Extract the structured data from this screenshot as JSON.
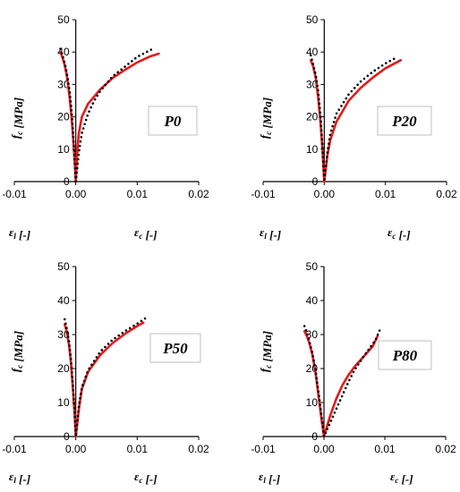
{
  "figure": {
    "colors": {
      "model_line": "#e31a1c",
      "experiment_points": "#000000",
      "axis": "#000000",
      "label_box_border": "#bfbfbf"
    }
  },
  "chart_data": [
    {
      "type": "line",
      "panel_label": "P0",
      "xlabel_left": "ε",
      "xlabel_left_sub": "l",
      "xlabel_left_unit": " [-]",
      "xlabel_right": "ε",
      "xlabel_right_sub": "c",
      "xlabel_right_unit": " [-]",
      "ylabel": "f",
      "ylabel_sub": "c",
      "ylabel_unit": " [MPa]",
      "xlim": [
        -0.01,
        0.02
      ],
      "ylim": [
        0,
        50
      ],
      "x_ticks": [
        "-0.01",
        "0.00",
        "0.01",
        "0.02"
      ],
      "y_ticks": [
        "0",
        "10",
        "20",
        "30",
        "40",
        "50"
      ],
      "series": [
        {
          "style": "solid-red",
          "points": [
            [
              -0.0025,
              40
            ],
            [
              -0.0022,
              38.5
            ],
            [
              -0.0018,
              36
            ],
            [
              -0.0014,
              32
            ],
            [
              -0.001,
              26
            ],
            [
              -0.0006,
              18
            ],
            [
              -0.0003,
              10
            ],
            [
              0,
              0
            ],
            [
              0.0002,
              8
            ],
            [
              0.0005,
              15
            ],
            [
              0.001,
              20
            ],
            [
              0.002,
              24
            ],
            [
              0.004,
              28.5
            ],
            [
              0.006,
              32
            ],
            [
              0.008,
              34.5
            ],
            [
              0.01,
              36.8
            ],
            [
              0.012,
              38.6
            ],
            [
              0.0135,
              39.5
            ]
          ]
        },
        {
          "style": "dotted-black",
          "points": [
            [
              -0.0025,
              41
            ],
            [
              -0.002,
              38
            ],
            [
              -0.0015,
              34
            ],
            [
              -0.001,
              28
            ],
            [
              -0.0006,
              20
            ],
            [
              -0.0003,
              11
            ],
            [
              0,
              0
            ],
            [
              0.0005,
              9
            ],
            [
              0.001,
              15
            ],
            [
              0.002,
              21
            ],
            [
              0.003,
              25
            ],
            [
              0.004,
              28
            ],
            [
              0.006,
              32.5
            ],
            [
              0.008,
              35.5
            ],
            [
              0.01,
              38.5
            ],
            [
              0.0125,
              41
            ]
          ]
        }
      ]
    },
    {
      "type": "line",
      "panel_label": "P20",
      "xlabel_left": "ε",
      "xlabel_left_sub": "l",
      "xlabel_left_unit": " [-]",
      "xlabel_right": "ε",
      "xlabel_right_sub": "c",
      "xlabel_right_unit": " [-]",
      "ylabel": "f",
      "ylabel_sub": "c",
      "ylabel_unit": " [MPa]",
      "xlim": [
        -0.01,
        0.02
      ],
      "ylim": [
        0,
        50
      ],
      "x_ticks": [
        "-0.01",
        "0.00",
        "0.01",
        "0.02"
      ],
      "y_ticks": [
        "0",
        "10",
        "20",
        "30",
        "40",
        "50"
      ],
      "series": [
        {
          "style": "solid-red",
          "points": [
            [
              -0.0022,
              37.5
            ],
            [
              -0.0018,
              35.5
            ],
            [
              -0.0014,
              32
            ],
            [
              -0.001,
              26
            ],
            [
              -0.0006,
              18
            ],
            [
              -0.0003,
              10
            ],
            [
              0,
              0
            ],
            [
              0.0005,
              8
            ],
            [
              0.001,
              13
            ],
            [
              0.002,
              18.5
            ],
            [
              0.004,
              25
            ],
            [
              0.006,
              29
            ],
            [
              0.008,
              32.2
            ],
            [
              0.01,
              35
            ],
            [
              0.0125,
              37.5
            ]
          ]
        },
        {
          "style": "dotted-black",
          "points": [
            [
              -0.0022,
              39
            ],
            [
              -0.0018,
              36
            ],
            [
              -0.0014,
              33
            ],
            [
              -0.001,
              28
            ],
            [
              -0.0006,
              20
            ],
            [
              -0.0003,
              11
            ],
            [
              0,
              0
            ],
            [
              0.0005,
              9
            ],
            [
              0.001,
              15
            ],
            [
              0.002,
              21
            ],
            [
              0.004,
              27
            ],
            [
              0.006,
              31
            ],
            [
              0.008,
              34
            ],
            [
              0.01,
              36.5
            ],
            [
              0.012,
              38.5
            ]
          ]
        }
      ]
    },
    {
      "type": "line",
      "panel_label": "P50",
      "xlabel_left": "ε",
      "xlabel_left_sub": "l",
      "xlabel_left_unit": " [-]",
      "xlabel_right": "ε",
      "xlabel_right_sub": "c",
      "xlabel_right_unit": " [-]",
      "ylabel": "f",
      "ylabel_sub": "c",
      "ylabel_unit": " [MPa]",
      "xlim": [
        -0.01,
        0.02
      ],
      "ylim": [
        0,
        50
      ],
      "x_ticks": [
        "-0.01",
        "0.00",
        "0.01",
        "0.02"
      ],
      "y_ticks": [
        "0",
        "10",
        "20",
        "30",
        "40",
        "50"
      ],
      "series": [
        {
          "style": "solid-red",
          "points": [
            [
              -0.0018,
              33
            ],
            [
              -0.0015,
              31
            ],
            [
              -0.0011,
              27
            ],
            [
              -0.0008,
              22
            ],
            [
              -0.0005,
              15
            ],
            [
              -0.0002,
              7
            ],
            [
              0,
              0
            ],
            [
              0.0005,
              8
            ],
            [
              0.001,
              14
            ],
            [
              0.002,
              19
            ],
            [
              0.004,
              24
            ],
            [
              0.006,
              27.5
            ],
            [
              0.008,
              30.2
            ],
            [
              0.01,
              32.5
            ],
            [
              0.011,
              33.5
            ]
          ]
        },
        {
          "style": "dotted-black",
          "points": [
            [
              -0.0018,
              34.5
            ],
            [
              -0.0015,
              32
            ],
            [
              -0.0011,
              28
            ],
            [
              -0.0008,
              23
            ],
            [
              -0.0005,
              16
            ],
            [
              -0.0002,
              8
            ],
            [
              0,
              0
            ],
            [
              0.0005,
              9
            ],
            [
              0.001,
              14.5
            ],
            [
              0.002,
              19.5
            ],
            [
              0.004,
              25
            ],
            [
              0.006,
              28.5
            ],
            [
              0.008,
              31
            ],
            [
              0.01,
              33.2
            ],
            [
              0.0115,
              35
            ]
          ]
        }
      ]
    },
    {
      "type": "line",
      "panel_label": "P80",
      "xlabel_left": "ε",
      "xlabel_left_sub": "l",
      "xlabel_left_unit": " [-]",
      "xlabel_right": "ε",
      "xlabel_right_sub": "c",
      "xlabel_right_unit": " [-]",
      "ylabel": "f",
      "ylabel_sub": "c",
      "ylabel_unit": " [MPa]",
      "xlim": [
        -0.01,
        0.02
      ],
      "ylim": [
        0,
        50
      ],
      "x_ticks": [
        "-0.01",
        "0.00",
        "0.01",
        "0.02"
      ],
      "y_ticks": [
        "0",
        "10",
        "20",
        "30",
        "40",
        "50"
      ],
      "series": [
        {
          "style": "solid-red",
          "points": [
            [
              -0.0032,
              31
            ],
            [
              -0.0028,
              29.5
            ],
            [
              -0.0024,
              27.5
            ],
            [
              -0.0019,
              24
            ],
            [
              -0.0014,
              19
            ],
            [
              -0.0009,
              12
            ],
            [
              -0.0004,
              5
            ],
            [
              0,
              0
            ],
            [
              0.001,
              6
            ],
            [
              0.002,
              11
            ],
            [
              0.003,
              15
            ],
            [
              0.004,
              18
            ],
            [
              0.005,
              20.5
            ],
            [
              0.0065,
              23.5
            ],
            [
              0.008,
              26.5
            ],
            [
              0.0088,
              29.5
            ]
          ]
        },
        {
          "style": "dotted-black",
          "points": [
            [
              -0.0032,
              32.5
            ],
            [
              -0.0028,
              30.5
            ],
            [
              -0.0024,
              28
            ],
            [
              -0.0019,
              24.5
            ],
            [
              -0.0014,
              19.5
            ],
            [
              -0.0009,
              13
            ],
            [
              -0.0004,
              6
            ],
            [
              0,
              0
            ],
            [
              0.001,
              4
            ],
            [
              0.002,
              8
            ],
            [
              0.003,
              12
            ],
            [
              0.004,
              16
            ],
            [
              0.005,
              19.5
            ],
            [
              0.0065,
              23.5
            ],
            [
              0.0085,
              28.5
            ],
            [
              0.0092,
              31.5
            ]
          ]
        }
      ]
    }
  ]
}
